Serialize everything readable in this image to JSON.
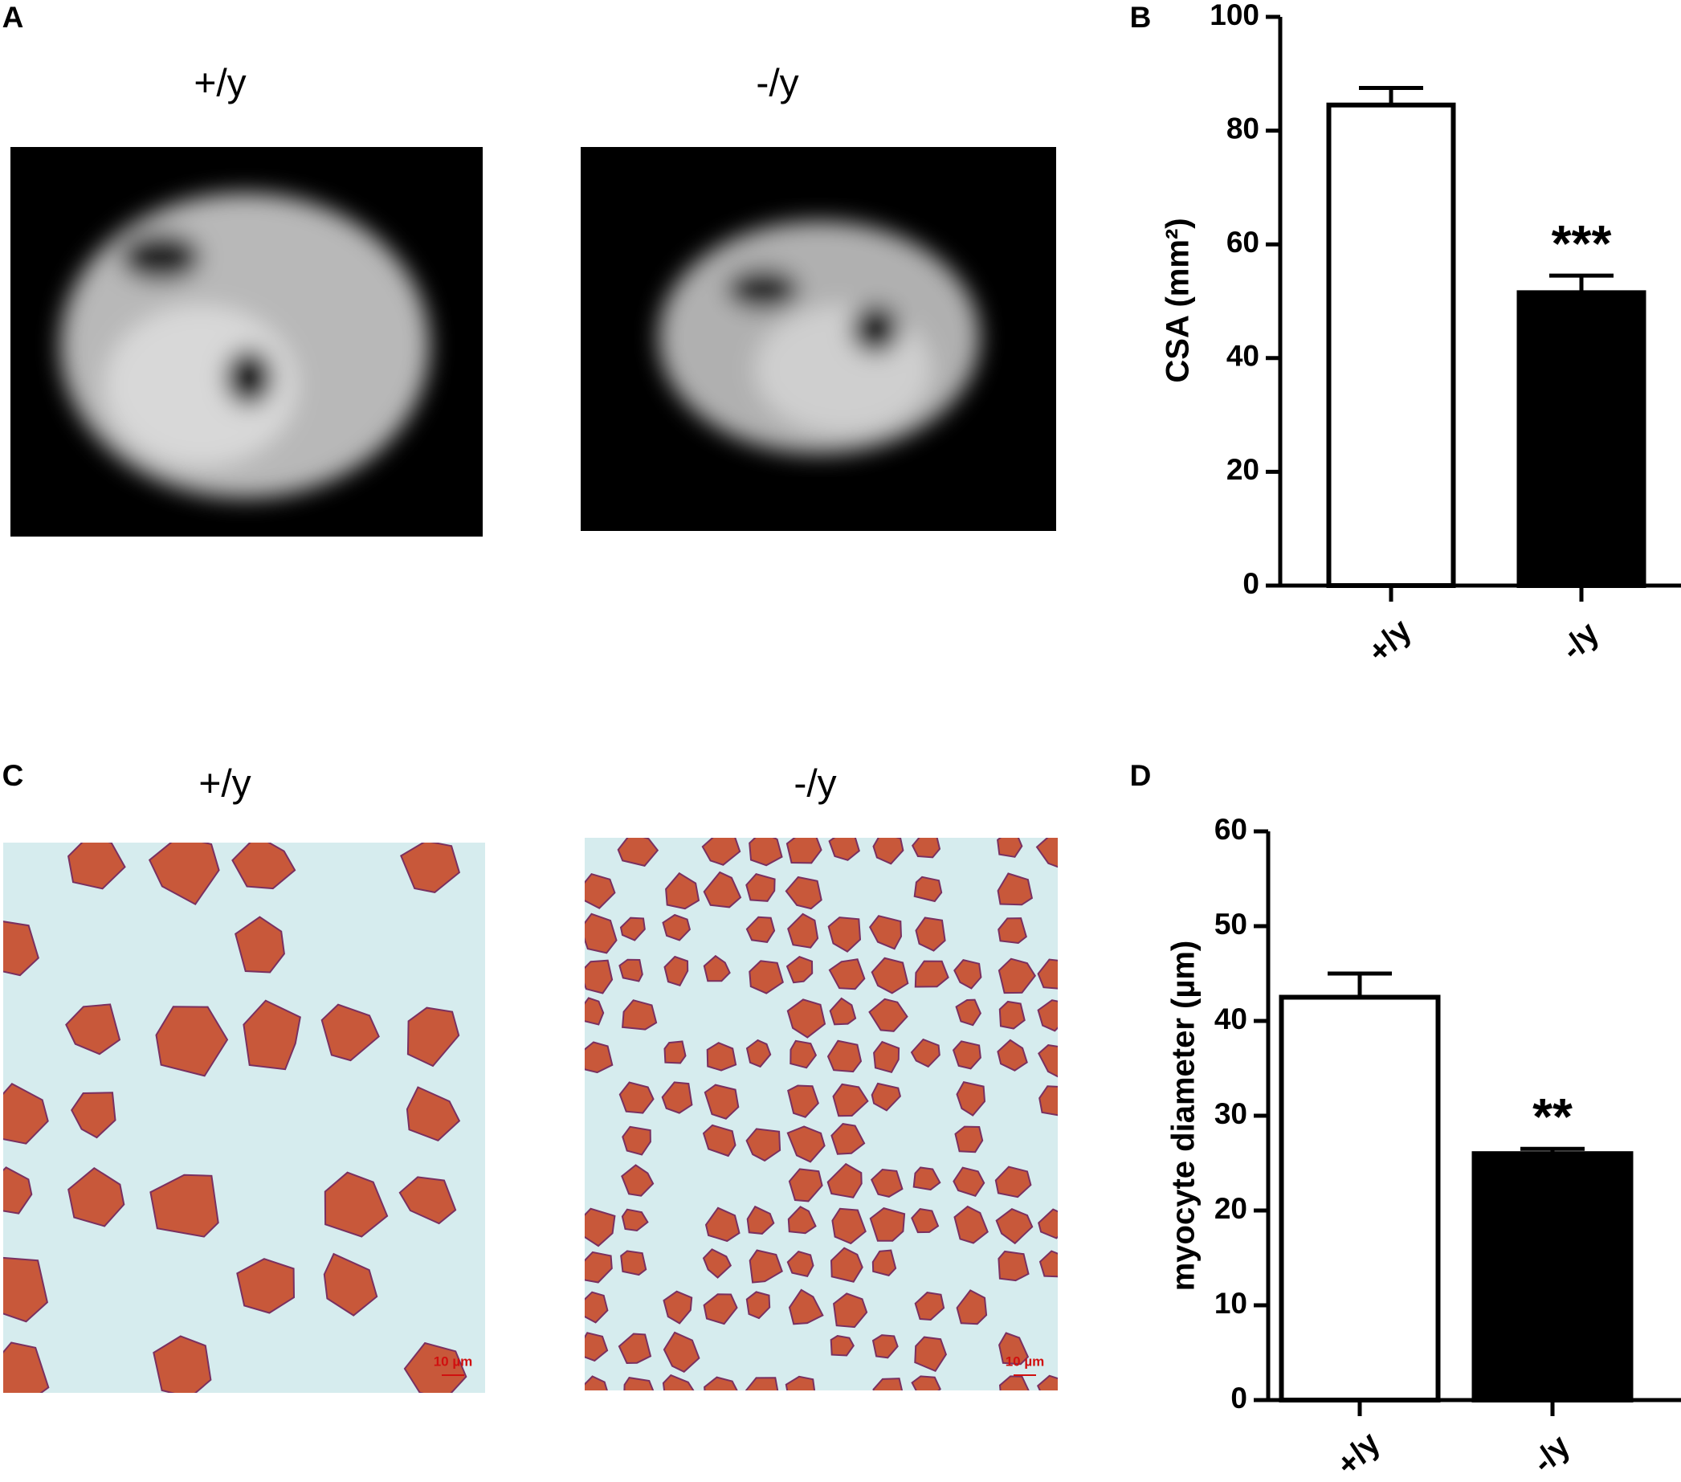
{
  "figure": {
    "panel_labels": [
      "A",
      "B",
      "C",
      "D"
    ],
    "image_labels": [
      "+/y",
      "-/y",
      "+/y",
      "-/y"
    ],
    "scale_bar": "10 µm"
  },
  "chart_data": [
    {
      "type": "bar",
      "ylabel": "CSA (mm²)",
      "categories": [
        "+/y",
        "-/y"
      ],
      "values": [
        84.5,
        51.5
      ],
      "errors": [
        3,
        3
      ],
      "colors": [
        "#ffffff",
        "#000000"
      ],
      "significance": [
        null,
        "***"
      ],
      "ylim": [
        0,
        100
      ],
      "yticks": [
        0,
        20,
        40,
        60,
        80,
        100
      ]
    },
    {
      "type": "bar",
      "ylabel": "myocyte diameter (µm)",
      "categories": [
        "+/y",
        "-/y"
      ],
      "values": [
        42.5,
        26
      ],
      "errors": [
        2.5,
        0.5
      ],
      "colors": [
        "#ffffff",
        "#000000"
      ],
      "significance": [
        null,
        "**"
      ],
      "ylim": [
        0,
        60
      ],
      "yticks": [
        0,
        10,
        20,
        30,
        40,
        50,
        60
      ]
    }
  ]
}
